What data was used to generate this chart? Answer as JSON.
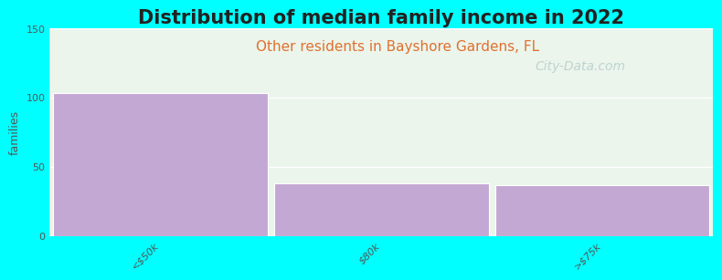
{
  "title": "Distribution of median family income in 2022",
  "subtitle": "Other residents in Bayshore Gardens, FL",
  "categories": [
    "<$50k",
    "$80k",
    ">$75k"
  ],
  "values": [
    103,
    38,
    37
  ],
  "bar_color": "#C4A8D4",
  "bar_edgecolor": "#ffffff",
  "figure_facecolor": "#00FFFF",
  "axes_facecolor": "#EBF5EB",
  "title_fontsize": 15,
  "subtitle_fontsize": 11,
  "subtitle_color": "#E07030",
  "title_color": "#222222",
  "ylabel": "families",
  "ylabel_color": "#555555",
  "ylim": [
    0,
    150
  ],
  "yticks": [
    0,
    50,
    100,
    150
  ],
  "watermark": "City-Data.com",
  "watermark_color": "#B0C8C8",
  "tick_label_color": "#555555",
  "tick_label_fontsize": 8,
  "bar_width": 0.97,
  "xlim": [
    -0.5,
    2.5
  ]
}
